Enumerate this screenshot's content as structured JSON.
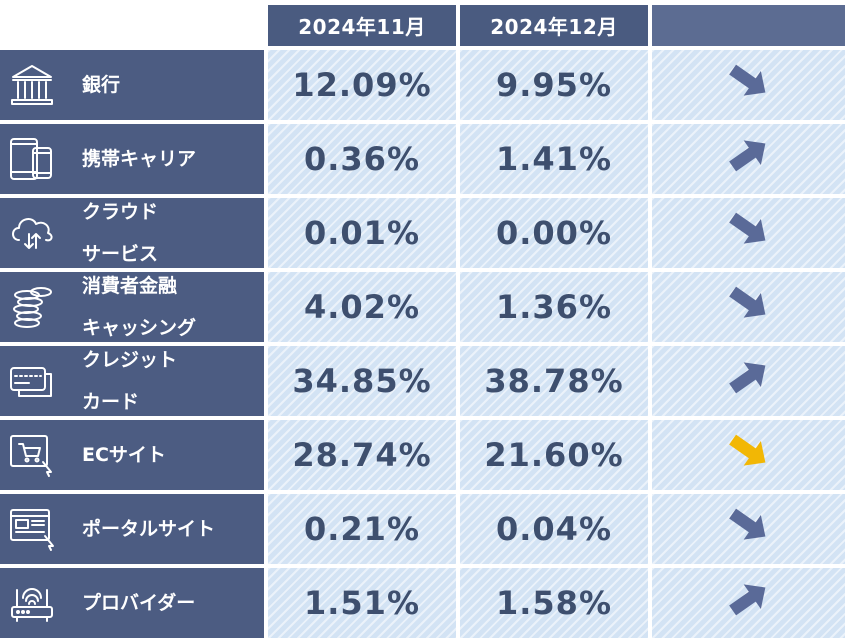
{
  "chart_data": {
    "type": "table",
    "columns": [
      "2024年11月",
      "2024年12月",
      ""
    ],
    "rows": [
      {
        "icon": "bank-icon",
        "label": [
          "銀行"
        ],
        "nov": "12.09%",
        "dec": "9.95%",
        "trend": "down",
        "trend_color": "#5a6a98"
      },
      {
        "icon": "smartphone-tablet-icon",
        "label": [
          "携帯キャリア"
        ],
        "nov": "0.36%",
        "dec": "1.41%",
        "trend": "up",
        "trend_color": "#5a6a98"
      },
      {
        "icon": "cloud-sync-icon",
        "label": [
          "クラウド",
          "サービス"
        ],
        "nov": "0.01%",
        "dec": "0.00%",
        "trend": "down",
        "trend_color": "#5a6a98"
      },
      {
        "icon": "coin-stack-icon",
        "label": [
          "消費者金融",
          "キャッシング"
        ],
        "nov": "4.02%",
        "dec": "1.36%",
        "trend": "down",
        "trend_color": "#5a6a98"
      },
      {
        "icon": "credit-card-icon",
        "label": [
          "クレジット",
          "カード"
        ],
        "nov": "34.85%",
        "dec": "38.78%",
        "trend": "up",
        "trend_color": "#5a6a98"
      },
      {
        "icon": "shopping-cart-screen-icon",
        "label": [
          "ECサイト"
        ],
        "nov": "28.74%",
        "dec": "21.60%",
        "trend": "down",
        "trend_color": "#f2b705"
      },
      {
        "icon": "portal-site-icon",
        "label": [
          "ポータルサイト"
        ],
        "nov": "0.21%",
        "dec": "0.04%",
        "trend": "down",
        "trend_color": "#5a6a98"
      },
      {
        "icon": "router-icon",
        "label": [
          "プロバイダー"
        ],
        "nov": "1.51%",
        "dec": "1.58%",
        "trend": "up",
        "trend_color": "#5a6a98"
      }
    ]
  },
  "colors": {
    "header_bg": "#4a5b80",
    "label_bg": "#4c5c82",
    "cell_bg": "#d3e3f4",
    "value_text": "#3e4f6e",
    "highlight_arrow": "#f2b705"
  }
}
